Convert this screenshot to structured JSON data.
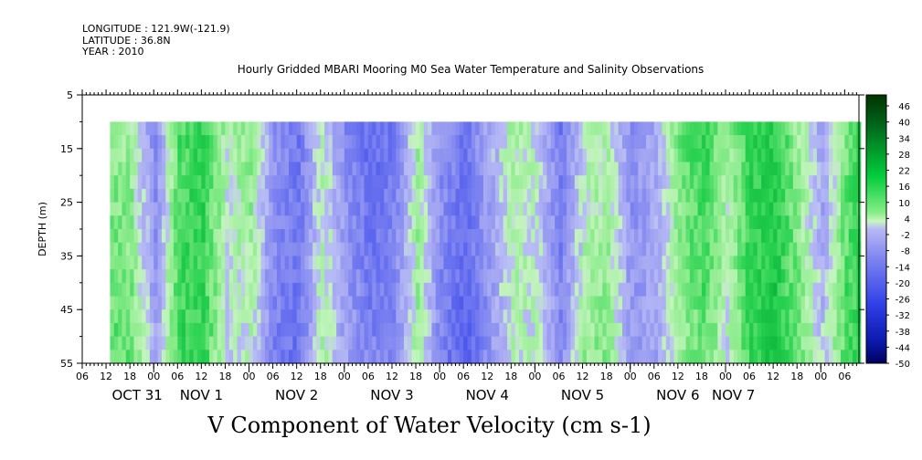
{
  "header": {
    "longitude": "LONGITUDE : 121.9W(-121.9)",
    "latitude": "LATITUDE : 36.8N",
    "year": "YEAR : 2010"
  },
  "plot_title": "Hourly Gridded MBARI Mooring M0 Sea Water Temperature and Salinity Observations",
  "variable_title": "V Component of Water Velocity (cm s-1)",
  "chart_data": {
    "type": "heatmap",
    "title": "Hourly Gridded MBARI Mooring M0 Sea Water Temperature and Salinity Observations",
    "subtitle": "V Component of Water Velocity (cm s-1)",
    "ylabel": "DEPTH (m)",
    "xlabel": "",
    "y_reversed": true,
    "ylim": [
      5,
      55
    ],
    "y_ticks": [
      5,
      15,
      25,
      35,
      45,
      55
    ],
    "data_depth_range": [
      10,
      55
    ],
    "x_hour_labels": [
      "06",
      "12",
      "18",
      "00",
      "06",
      "12",
      "18",
      "00",
      "06",
      "12",
      "18",
      "00",
      "06",
      "12",
      "18",
      "00",
      "06",
      "12",
      "18",
      "00",
      "06",
      "12",
      "18",
      "00",
      "06",
      "12",
      "18",
      "00",
      "06",
      "12",
      "18",
      "00",
      "06"
    ],
    "x_day_labels": [
      "OCT 31",
      "NOV 1",
      "NOV 2",
      "NOV 3",
      "NOV 4",
      "NOV 5",
      "NOV 6",
      "NOV 7"
    ],
    "colorbar_levels": [
      46,
      40,
      34,
      28,
      22,
      16,
      10,
      4,
      -2,
      -8,
      -14,
      -20,
      -26,
      -32,
      -38,
      -44,
      -50
    ],
    "colorbar_colors": {
      "strong_positive": "#004d00",
      "positive": "#00cc33",
      "weak_positive": "#a8f0a0",
      "weak_negative": "#a8a8f0",
      "negative": "#3344ee",
      "strong_negative": "#000066"
    },
    "columns_note_free": [
      {
        "hour": 0,
        "v": -6
      },
      {
        "hour": 6,
        "v": 10
      },
      {
        "hour": 12,
        "v": 8
      },
      {
        "hour": 18,
        "v": -8
      },
      {
        "hour": 24,
        "v": 14
      },
      {
        "hour": 30,
        "v": 16
      },
      {
        "hour": 36,
        "v": 2
      },
      {
        "hour": 42,
        "v": 6
      },
      {
        "hour": 48,
        "v": -10
      },
      {
        "hour": 54,
        "v": -14
      },
      {
        "hour": 60,
        "v": 4
      },
      {
        "hour": 66,
        "v": -8
      },
      {
        "hour": 72,
        "v": -14
      },
      {
        "hour": 78,
        "v": -12
      },
      {
        "hour": 84,
        "v": 6
      },
      {
        "hour": 90,
        "v": -10
      },
      {
        "hour": 96,
        "v": -16
      },
      {
        "hour": 102,
        "v": -6
      },
      {
        "hour": 108,
        "v": 4
      },
      {
        "hour": 114,
        "v": 2
      },
      {
        "hour": 120,
        "v": -12
      },
      {
        "hour": 126,
        "v": 4
      },
      {
        "hour": 132,
        "v": 6
      },
      {
        "hour": 138,
        "v": -8
      },
      {
        "hour": 144,
        "v": -4
      },
      {
        "hour": 150,
        "v": 8
      },
      {
        "hour": 156,
        "v": 14
      },
      {
        "hour": 162,
        "v": 4
      },
      {
        "hour": 168,
        "v": 16
      },
      {
        "hour": 174,
        "v": 18
      },
      {
        "hour": 180,
        "v": 8
      },
      {
        "hour": 186,
        "v": -4
      },
      {
        "hour": 192,
        "v": 12
      },
      {
        "hour": 198,
        "v": 18
      },
      {
        "hour": 204,
        "v": 6
      }
    ]
  }
}
